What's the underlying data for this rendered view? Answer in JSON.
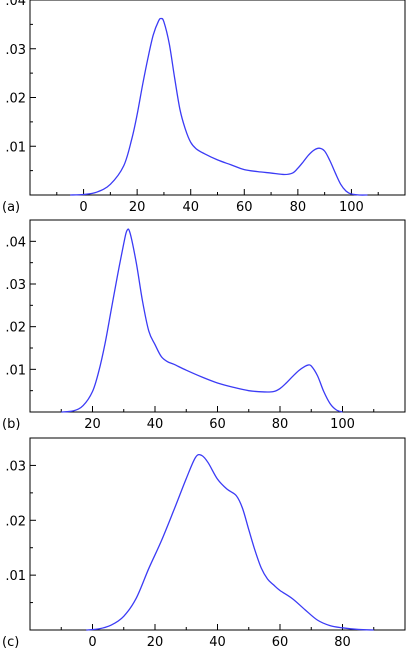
{
  "chart_data": [
    {
      "type": "line",
      "panel_label": "(a)",
      "xlim": [
        -20,
        120
      ],
      "ylim": [
        0,
        0.04
      ],
      "xticks": [
        0,
        20,
        40,
        60,
        80,
        100
      ],
      "xtick_labels": [
        "0",
        "20",
        "40",
        "60",
        "80",
        "100"
      ],
      "yticks": [
        0.01,
        0.02,
        0.03,
        0.04
      ],
      "ytick_labels": [
        ".01",
        ".02",
        ".03",
        ".04"
      ],
      "grid": false,
      "line_color": "#3b3bf5",
      "series": [
        {
          "x": [
            -5,
            0,
            5,
            10,
            15,
            18,
            20,
            22,
            24,
            26,
            28,
            29,
            30,
            32,
            34,
            36,
            38,
            40,
            42,
            45,
            50,
            55,
            60,
            65,
            70,
            75,
            78,
            80,
            82,
            84,
            86,
            88,
            90,
            92,
            94,
            96,
            98,
            100,
            103,
            106
          ],
          "y": [
            0,
            0.0001,
            0.0006,
            0.0022,
            0.006,
            0.0115,
            0.0165,
            0.0225,
            0.028,
            0.0328,
            0.0357,
            0.0362,
            0.0355,
            0.031,
            0.024,
            0.0175,
            0.0135,
            0.0108,
            0.0095,
            0.0085,
            0.0072,
            0.0062,
            0.0052,
            0.0048,
            0.0045,
            0.0042,
            0.0045,
            0.0055,
            0.0068,
            0.0082,
            0.0092,
            0.0096,
            0.009,
            0.007,
            0.0045,
            0.0022,
            0.0008,
            0.0002,
            0,
            0
          ]
        }
      ]
    },
    {
      "type": "line",
      "panel_label": "(b)",
      "xlim": [
        0,
        120
      ],
      "ylim": [
        0,
        0.045
      ],
      "xticks": [
        20,
        40,
        60,
        80,
        100
      ],
      "xtick_labels": [
        "20",
        "40",
        "60",
        "80",
        "100"
      ],
      "yticks": [
        0.01,
        0.02,
        0.03,
        0.04
      ],
      "ytick_labels": [
        ".01",
        ".02",
        ".03",
        ".04"
      ],
      "grid": false,
      "line_color": "#3b3bf5",
      "series": [
        {
          "x": [
            10,
            14,
            17,
            20,
            22,
            24,
            26,
            28,
            30,
            31,
            32,
            34,
            36,
            38,
            40,
            42,
            44,
            46,
            50,
            55,
            60,
            65,
            70,
            75,
            78,
            80,
            82,
            84,
            86,
            88,
            89,
            90,
            92,
            94,
            96,
            98,
            100
          ],
          "y": [
            0,
            0.0003,
            0.0015,
            0.0048,
            0.0095,
            0.016,
            0.024,
            0.032,
            0.0395,
            0.0425,
            0.042,
            0.035,
            0.026,
            0.019,
            0.0158,
            0.013,
            0.0118,
            0.0112,
            0.0098,
            0.0082,
            0.0068,
            0.0058,
            0.005,
            0.0047,
            0.0048,
            0.0055,
            0.0068,
            0.0083,
            0.0097,
            0.0107,
            0.011,
            0.0108,
            0.0085,
            0.0048,
            0.002,
            0.0005,
            0
          ]
        }
      ]
    },
    {
      "type": "line",
      "panel_label": "(c)",
      "xlim": [
        -20,
        100
      ],
      "ylim": [
        0,
        0.035
      ],
      "xticks": [
        0,
        20,
        40,
        60,
        80
      ],
      "xtick_labels": [
        "0",
        "20",
        "40",
        "60",
        "80"
      ],
      "yticks": [
        0.01,
        0.02,
        0.03
      ],
      "ytick_labels": [
        ".01",
        ".02",
        ".03"
      ],
      "grid": false,
      "line_color": "#3b3bf5",
      "series": [
        {
          "x": [
            -2,
            2,
            6,
            10,
            14,
            18,
            22,
            26,
            30,
            33,
            35,
            37,
            40,
            43,
            46,
            48,
            50,
            52,
            54,
            56,
            58,
            60,
            64,
            68,
            72,
            76,
            80,
            85,
            90
          ],
          "y": [
            0,
            0.0002,
            0.0009,
            0.0025,
            0.0058,
            0.0112,
            0.0162,
            0.0218,
            0.0276,
            0.0315,
            0.0318,
            0.0305,
            0.0275,
            0.0257,
            0.0245,
            0.0222,
            0.0183,
            0.0145,
            0.0113,
            0.0093,
            0.0082,
            0.0072,
            0.0057,
            0.0037,
            0.0018,
            0.0008,
            0.0004,
            0.0001,
            0
          ]
        }
      ]
    }
  ]
}
